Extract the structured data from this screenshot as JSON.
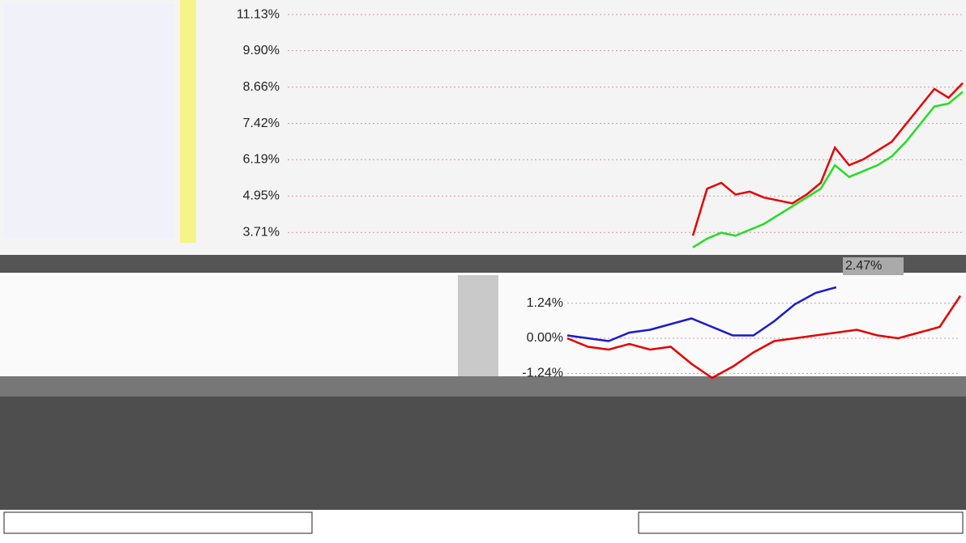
{
  "chart_data": [
    {
      "type": "line",
      "ylim": [
        3.0,
        11.6
      ],
      "yticks": [
        {
          "value": 11.13,
          "label": "11.13%"
        },
        {
          "value": 9.9,
          "label": "9.90%"
        },
        {
          "value": 8.66,
          "label": "8.66%"
        },
        {
          "value": 7.42,
          "label": "7.42%"
        },
        {
          "value": 6.19,
          "label": "6.19%"
        },
        {
          "value": 4.95,
          "label": "4.95%"
        },
        {
          "value": 3.71,
          "label": "3.71%"
        }
      ],
      "annotation": "2.47%",
      "grid": true,
      "series": [
        {
          "color": "#e60000",
          "values": [
            3.6,
            5.2,
            5.4,
            5.0,
            5.1,
            4.9,
            4.8,
            4.7,
            5.0,
            5.4,
            6.6,
            6.0,
            6.2,
            6.5,
            6.8,
            7.4,
            8.0,
            8.6,
            8.3,
            8.8
          ]
        },
        {
          "color": "#22dd22",
          "values": [
            3.2,
            3.5,
            3.7,
            3.6,
            3.8,
            4.0,
            4.3,
            4.6,
            4.9,
            5.2,
            6.0,
            5.6,
            5.8,
            6.0,
            6.3,
            6.8,
            7.4,
            8.0,
            8.1,
            8.5
          ]
        }
      ]
    },
    {
      "type": "line",
      "ylim": [
        -2,
        2
      ],
      "yticks": [
        {
          "value": 1.24,
          "label": "1.24%"
        },
        {
          "value": 0,
          "label": "0.00%"
        },
        {
          "value": -1.24,
          "label": "-1.24%"
        }
      ],
      "grid": true,
      "series": [
        {
          "color": "#1a1acc",
          "values": [
            0.1,
            0.0,
            -0.1,
            0.2,
            0.3,
            0.5,
            0.7,
            0.4,
            0.1,
            0.1,
            0.6,
            1.2,
            1.6,
            1.8,
            null,
            null,
            null,
            null,
            null,
            null
          ]
        },
        {
          "color": "#e60000",
          "values": [
            0.0,
            -0.3,
            -0.4,
            -0.2,
            -0.4,
            -0.3,
            -0.9,
            -1.4,
            -1.0,
            -0.5,
            -0.1,
            0.0,
            0.1,
            0.2,
            0.3,
            0.1,
            0.0,
            0.2,
            0.4,
            1.5
          ]
        }
      ]
    }
  ]
}
